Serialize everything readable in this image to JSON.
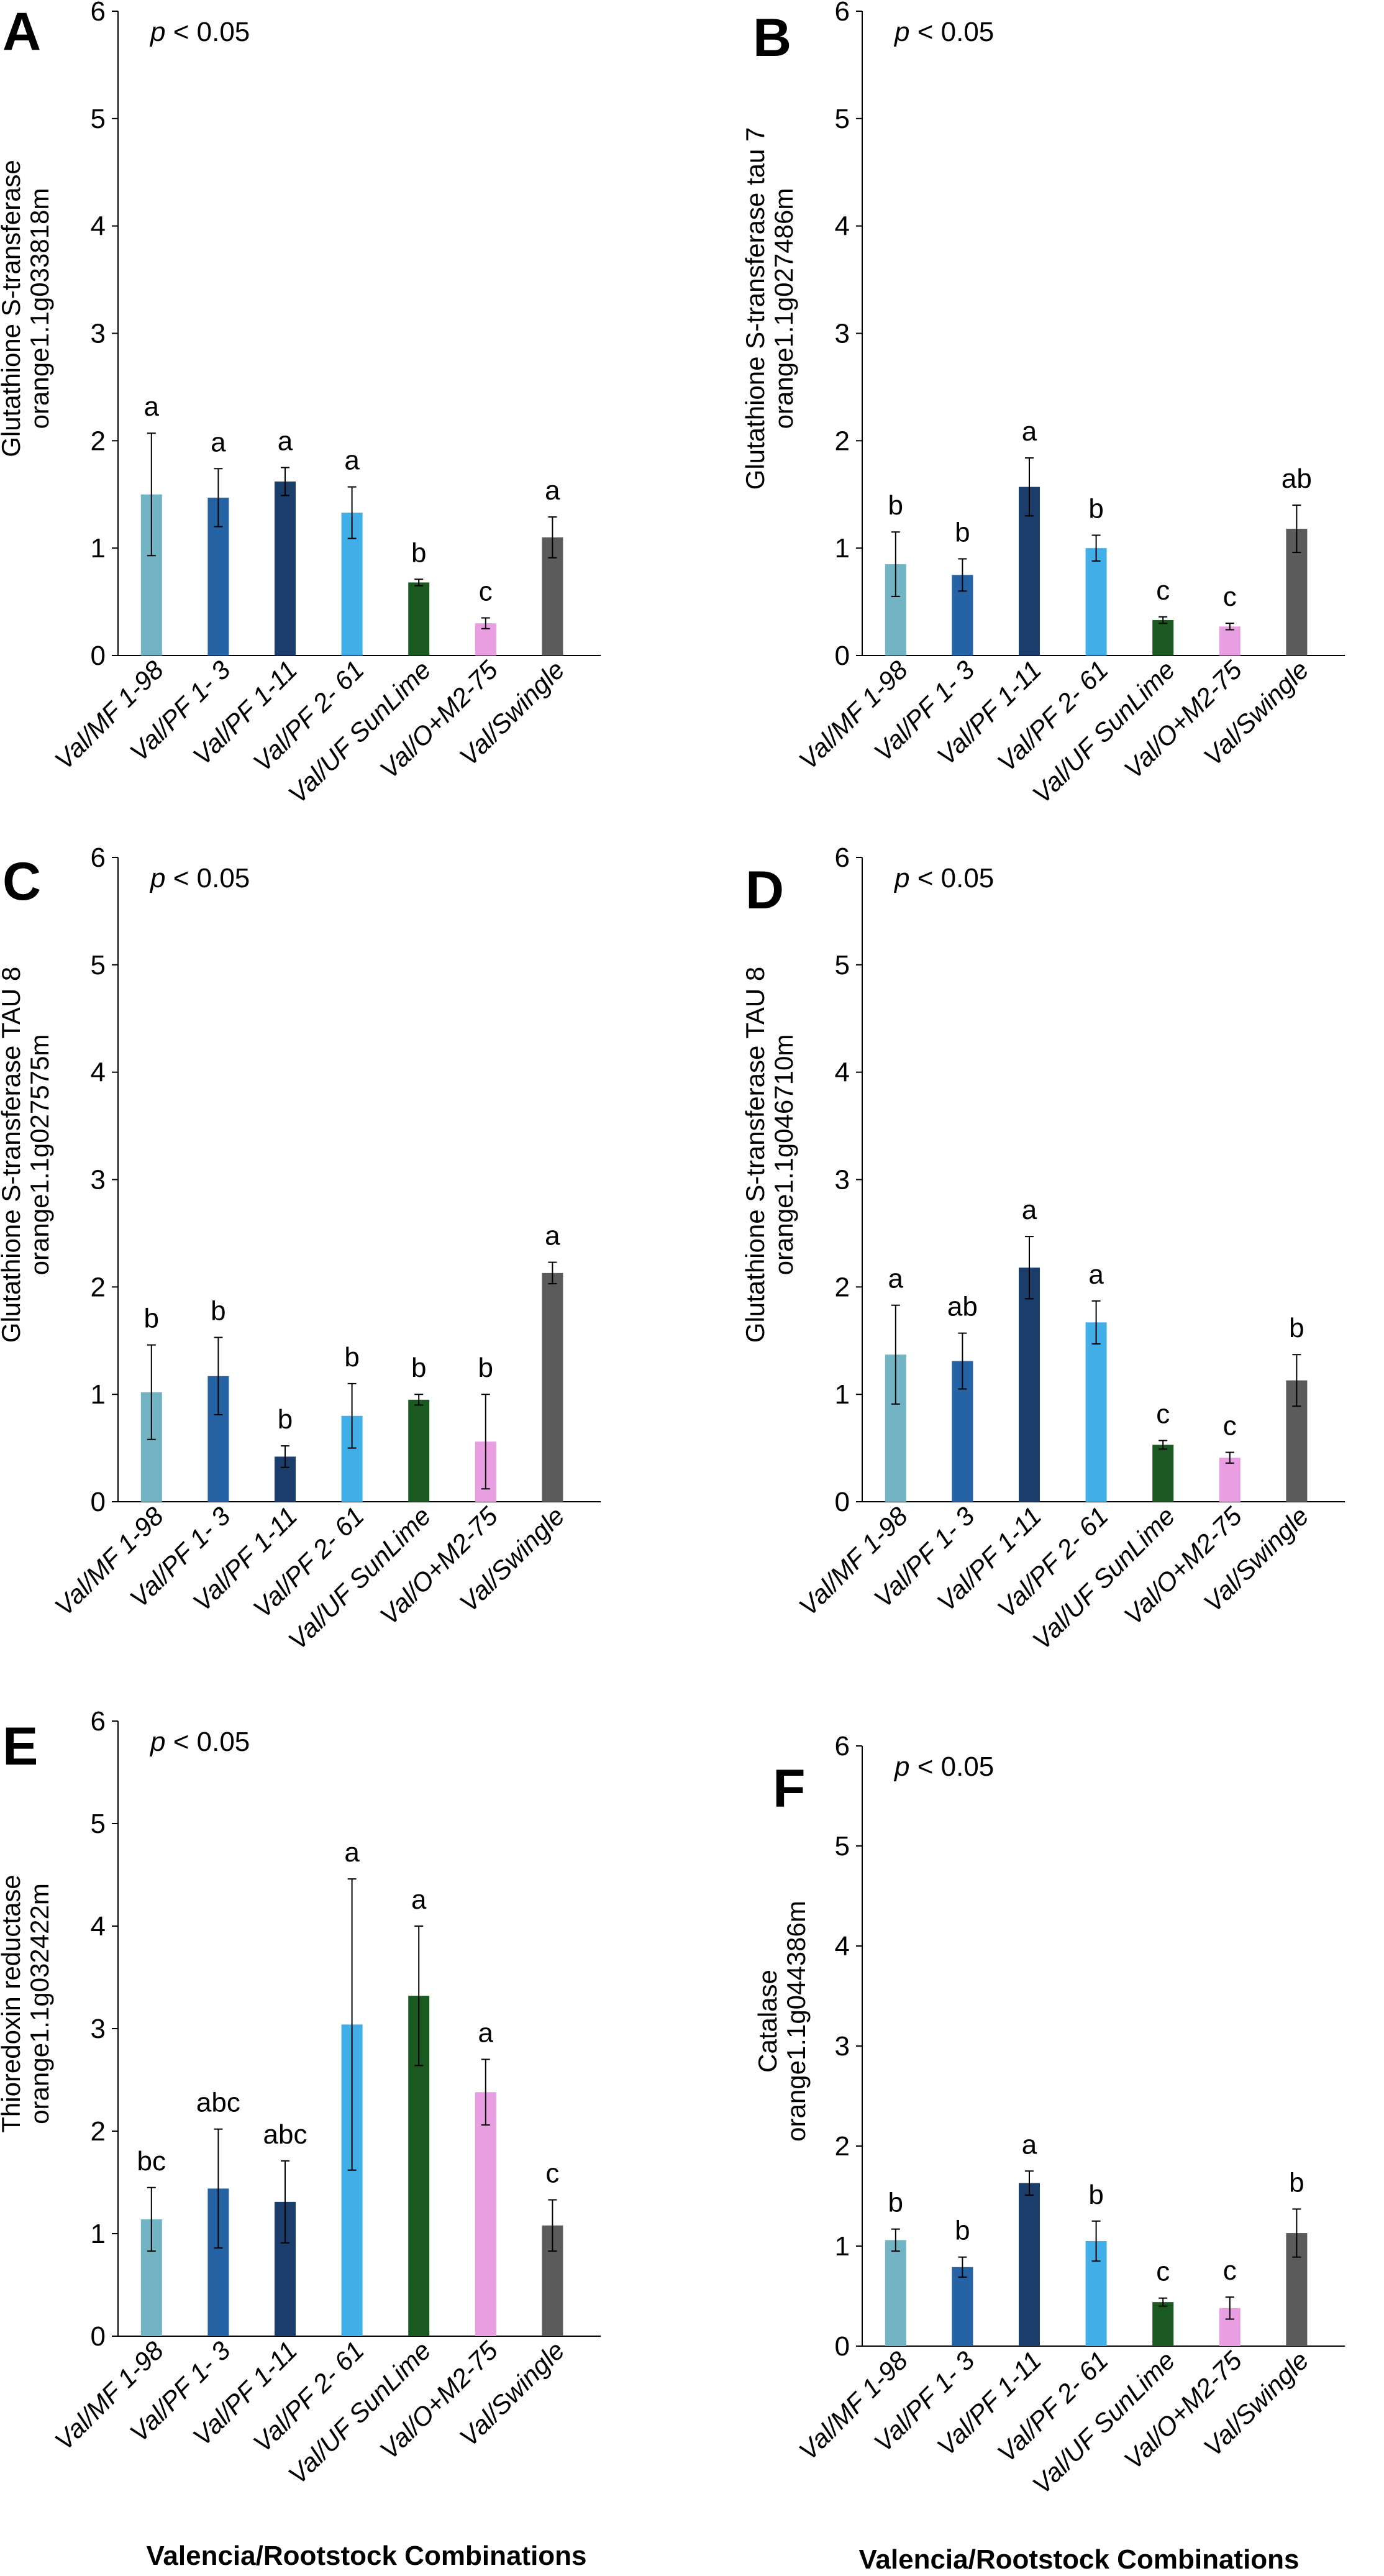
{
  "figure": {
    "x_title": "Valencia/Rootstock Combinations",
    "categories": [
      "Val/MF 1-98",
      "Val/PF 1- 3",
      "Val/PF 1-11",
      "Val/PF 2- 61",
      "Val/UF SunLime",
      "Val/O+M2-75",
      "Val/Swingle"
    ],
    "colors": [
      "#73b4c4",
      "#2563a5",
      "#1a3d6b",
      "#41aee8",
      "#1a5a20",
      "#e89ee0",
      "#5b5b5b"
    ]
  },
  "chart_data": [
    {
      "type": "bar",
      "panel": "A",
      "annotation": "p < 0.05",
      "ylabel": [
        "Glutathione S-transferase",
        "orange1.1g033818m"
      ],
      "ylim": [
        0,
        6
      ],
      "yticks": [
        "0",
        "1",
        "2",
        "3",
        "4",
        "5",
        "6"
      ],
      "categories": [
        "Val/MF 1-98",
        "Val/PF 1- 3",
        "Val/PF 1-11",
        "Val/PF 2- 61",
        "Val/UF SunLime",
        "Val/O+M2-75",
        "Val/Swingle"
      ],
      "values": [
        1.5,
        1.47,
        1.62,
        1.33,
        0.68,
        0.3,
        1.1
      ],
      "errors": [
        0.57,
        0.27,
        0.13,
        0.24,
        0.03,
        0.05,
        0.19
      ],
      "labels": [
        "a",
        "a",
        "a",
        "a",
        "b",
        "c",
        "a"
      ]
    },
    {
      "type": "bar",
      "panel": "B",
      "annotation": "p < 0.05",
      "ylabel": [
        "Glutathione S-transferase tau 7",
        "orange1.1g027486m"
      ],
      "ylim": [
        0,
        6
      ],
      "yticks": [
        "0",
        "1",
        "2",
        "3",
        "4",
        "5",
        "6"
      ],
      "categories": [
        "Val/MF 1-98",
        "Val/PF 1- 3",
        "Val/PF 1-11",
        "Val/PF 2- 61",
        "Val/UF SunLime",
        "Val/O+M2-75",
        "Val/Swingle"
      ],
      "values": [
        0.85,
        0.75,
        1.57,
        1.0,
        0.33,
        0.27,
        1.18
      ],
      "errors": [
        0.3,
        0.15,
        0.27,
        0.12,
        0.03,
        0.03,
        0.22
      ],
      "labels": [
        "b",
        "b",
        "a",
        "b",
        "c",
        "c",
        "ab"
      ]
    },
    {
      "type": "bar",
      "panel": "C",
      "annotation": "p < 0.05",
      "ylabel": [
        "Glutathione S-transferase TAU 8",
        "orange1.1g027575m"
      ],
      "ylim": [
        0,
        6
      ],
      "yticks": [
        "0",
        "1",
        "2",
        "3",
        "4",
        "5",
        "6"
      ],
      "categories": [
        "Val/MF 1-98",
        "Val/PF 1- 3",
        "Val/PF 1-11",
        "Val/PF 2- 61",
        "Val/UF SunLime",
        "Val/O+M2-75",
        "Val/Swingle"
      ],
      "values": [
        1.02,
        1.17,
        0.42,
        0.8,
        0.95,
        0.56,
        2.13
      ],
      "errors": [
        0.44,
        0.36,
        0.1,
        0.3,
        0.05,
        0.44,
        0.1
      ],
      "labels": [
        "b",
        "b",
        "b",
        "b",
        "b",
        "b",
        "a"
      ]
    },
    {
      "type": "bar",
      "panel": "D",
      "annotation": "p < 0.05",
      "ylabel": [
        "Glutathione S-transferase TAU 8",
        "orange1.1g046710m"
      ],
      "ylim": [
        0,
        6
      ],
      "yticks": [
        "0",
        "1",
        "2",
        "3",
        "4",
        "5",
        "6"
      ],
      "categories": [
        "Val/MF 1-98",
        "Val/PF 1- 3",
        "Val/PF 1-11",
        "Val/PF 2- 61",
        "Val/UF SunLime",
        "Val/O+M2-75",
        "Val/Swingle"
      ],
      "values": [
        1.37,
        1.31,
        2.18,
        1.67,
        0.53,
        0.41,
        1.13
      ],
      "errors": [
        0.46,
        0.26,
        0.29,
        0.2,
        0.04,
        0.05,
        0.24
      ],
      "labels": [
        "a",
        "ab",
        "a",
        "a",
        "c",
        "c",
        "b"
      ]
    },
    {
      "type": "bar",
      "panel": "E",
      "annotation": "p < 0.05",
      "ylabel": [
        "Thioredoxin reductase",
        "orange1.1g032422m"
      ],
      "ylim": [
        0,
        6
      ],
      "yticks": [
        "0",
        "1",
        "2",
        "3",
        "4",
        "5",
        "6"
      ],
      "categories": [
        "Val/MF 1-98",
        "Val/PF 1- 3",
        "Val/PF 1-11",
        "Val/PF 2- 61",
        "Val/UF SunLime",
        "Val/O+M2-75",
        "Val/Swingle"
      ],
      "values": [
        1.14,
        1.44,
        1.31,
        3.04,
        3.32,
        2.38,
        1.08
      ],
      "errors": [
        0.31,
        0.58,
        0.4,
        1.42,
        0.68,
        0.32,
        0.25
      ],
      "labels": [
        "bc",
        "abc",
        "abc",
        "a",
        "a",
        "a",
        "c"
      ]
    },
    {
      "type": "bar",
      "panel": "F",
      "annotation": "p < 0.05",
      "ylabel": [
        "Catalase",
        "orange1.1g044386m"
      ],
      "ylim": [
        0,
        6
      ],
      "yticks": [
        "0",
        "1",
        "2",
        "3",
        "4",
        "5",
        "6"
      ],
      "categories": [
        "Val/MF 1-98",
        "Val/PF 1- 3",
        "Val/PF 1-11",
        "Val/PF 2- 61",
        "Val/UF SunLime",
        "Val/O+M2-75",
        "Val/Swingle"
      ],
      "values": [
        1.06,
        0.79,
        1.63,
        1.05,
        0.44,
        0.38,
        1.13
      ],
      "errors": [
        0.11,
        0.1,
        0.12,
        0.2,
        0.04,
        0.11,
        0.24
      ],
      "labels": [
        "b",
        "b",
        "a",
        "b",
        "c",
        "c",
        "b"
      ]
    }
  ]
}
